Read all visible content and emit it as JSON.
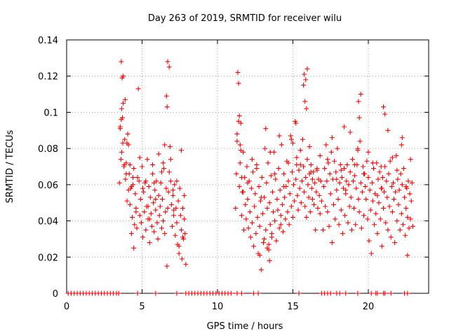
{
  "chart_data": {
    "type": "scatter",
    "title": "Day 263 of 2019, SRMTID for receiver wilu",
    "xlabel": "GPS time / hours",
    "ylabel": "SRMTID / TECUs",
    "xlim": [
      0,
      24
    ],
    "ylim": [
      0,
      0.14
    ],
    "grid": true,
    "legend": "none",
    "marker": "+",
    "color": "#ff0000",
    "x_ticks": [
      0,
      5,
      10,
      15,
      20
    ],
    "x_tick_labels": [
      "0",
      "5",
      "10",
      "15",
      "20"
    ],
    "y_ticks": [
      0,
      0.02,
      0.04,
      0.06,
      0.08,
      0.1,
      0.12,
      0.14
    ],
    "y_tick_labels": [
      "0",
      "0.02",
      "0.04",
      "0.06",
      "0.08",
      "0.1",
      "0.12",
      "0.14"
    ],
    "series": [
      {
        "name": "SRMTID",
        "note": "points at y=0 mark times with no data; main clusters 3.4-8.0 h and 11.1-23.0 h",
        "x": [
          0.1,
          0.3,
          0.5,
          0.7,
          0.9,
          1.1,
          1.3,
          1.5,
          1.7,
          1.9,
          2.1,
          2.3,
          2.5,
          2.7,
          2.9,
          3.1,
          3.3,
          3.45,
          4.7,
          5.9,
          7.3,
          7.9,
          8.1,
          8.3,
          8.5,
          8.7,
          8.9,
          9.1,
          9.3,
          9.5,
          9.7,
          9.9,
          10.1,
          10.3,
          10.5,
          10.7,
          10.9,
          11.3,
          11.6,
          12.4,
          12.7,
          15.4,
          16.9,
          17.1,
          17.3,
          17.5,
          17.9,
          18.1,
          18.5,
          19.3,
          20.2,
          20.5,
          20.6,
          21.0,
          21.1,
          21.5,
          22.4,
          22.6,
          3.5,
          3.55,
          3.6,
          3.62,
          3.65,
          3.7,
          3.72,
          3.75,
          3.8,
          3.85,
          3.88,
          3.9,
          3.95,
          4.0,
          4.05,
          4.1,
          4.15,
          4.2,
          4.25,
          4.3,
          4.35,
          4.4,
          4.45,
          4.5,
          4.55,
          4.6,
          4.65,
          4.7,
          4.75,
          4.8,
          4.85,
          4.9,
          4.95,
          5.0,
          5.05,
          5.1,
          5.15,
          5.2,
          5.25,
          5.3,
          5.35,
          5.4,
          5.45,
          5.5,
          5.55,
          5.6,
          5.65,
          5.7,
          5.75,
          5.8,
          5.85,
          5.9,
          5.95,
          6.0,
          6.05,
          6.1,
          6.15,
          6.2,
          6.25,
          6.3,
          6.35,
          6.4,
          6.45,
          6.5,
          6.55,
          6.6,
          6.65,
          6.7,
          6.75,
          6.8,
          6.85,
          6.9,
          6.95,
          7.0,
          7.05,
          7.1,
          7.15,
          7.2,
          7.25,
          7.3,
          7.35,
          7.4,
          7.45,
          7.5,
          7.55,
          7.6,
          7.65,
          7.7,
          7.75,
          7.8,
          7.85,
          7.9,
          3.55,
          3.65,
          3.75,
          3.82,
          3.95,
          4.1,
          4.3,
          4.45,
          4.6,
          4.85,
          5.05,
          5.25,
          5.5,
          5.7,
          5.9,
          6.1,
          6.3,
          6.5,
          6.62,
          6.66,
          6.7,
          6.9,
          7.05,
          7.3,
          7.45,
          7.6,
          7.8,
          3.62,
          3.68,
          4.0,
          4.2,
          4.4,
          5.4,
          5.8,
          6.4,
          6.8,
          7.1,
          7.7,
          11.2,
          11.25,
          11.3,
          11.35,
          11.4,
          11.45,
          11.5,
          11.55,
          11.6,
          11.65,
          11.7,
          11.75,
          11.8,
          11.85,
          11.9,
          11.95,
          12.0,
          12.05,
          12.1,
          12.15,
          12.2,
          12.25,
          12.3,
          12.35,
          12.4,
          12.45,
          12.5,
          12.55,
          12.6,
          12.65,
          12.7,
          12.75,
          12.8,
          12.85,
          12.9,
          12.95,
          13.0,
          13.05,
          13.1,
          13.15,
          13.2,
          13.25,
          13.3,
          13.35,
          13.4,
          13.45,
          13.5,
          13.55,
          13.6,
          13.65,
          13.7,
          13.75,
          13.8,
          13.85,
          13.9,
          13.95,
          14.0,
          14.05,
          14.1,
          14.15,
          14.2,
          14.25,
          14.3,
          14.35,
          14.4,
          14.45,
          14.5,
          14.55,
          14.6,
          14.65,
          14.7,
          14.75,
          14.8,
          14.85,
          14.9,
          14.95,
          15.0,
          15.05,
          15.1,
          15.15,
          15.2,
          15.25,
          15.3,
          15.35,
          15.4,
          15.45,
          15.5,
          15.55,
          15.6,
          15.65,
          15.7,
          15.75,
          15.8,
          15.85,
          15.9,
          15.95,
          16.0,
          16.05,
          16.1,
          16.15,
          16.2,
          16.25,
          16.3,
          16.35,
          16.4,
          16.45,
          16.5,
          16.55,
          16.6,
          16.65,
          16.7,
          16.75,
          16.8,
          16.85,
          16.9,
          11.3,
          11.4,
          11.5,
          11.6,
          11.7,
          12.0,
          12.3,
          12.6,
          12.9,
          13.2,
          13.5,
          13.8,
          14.1,
          14.4,
          14.7,
          15.0,
          15.2,
          15.5,
          15.7,
          15.8,
          15.9,
          16.1,
          16.3,
          16.6,
          16.8,
          11.45,
          11.55,
          13.1,
          13.3,
          13.6,
          14.2,
          14.9,
          15.25,
          15.75,
          15.85,
          15.95,
          16.2,
          12.8,
          13.4,
          13.45,
          17.0,
          17.05,
          17.1,
          17.15,
          17.2,
          17.25,
          17.3,
          17.35,
          17.4,
          17.45,
          17.5,
          17.55,
          17.6,
          17.65,
          17.7,
          17.75,
          17.8,
          17.85,
          17.9,
          17.95,
          18.0,
          18.05,
          18.1,
          18.15,
          18.2,
          18.25,
          18.3,
          18.35,
          18.4,
          18.45,
          18.5,
          18.55,
          18.6,
          18.65,
          18.7,
          18.75,
          18.8,
          18.85,
          18.9,
          18.95,
          19.0,
          19.05,
          19.1,
          19.15,
          19.2,
          19.25,
          19.3,
          19.35,
          19.4,
          19.45,
          19.5,
          19.55,
          19.6,
          19.65,
          19.7,
          19.75,
          19.8,
          19.85,
          19.9,
          19.95,
          20.0,
          20.05,
          20.1,
          20.15,
          20.2,
          20.25,
          20.3,
          20.35,
          20.4,
          20.45,
          20.5,
          20.55,
          20.6,
          20.65,
          20.7,
          20.75,
          20.8,
          20.85,
          20.9,
          20.95,
          21.0,
          21.05,
          21.1,
          21.15,
          21.2,
          21.25,
          21.3,
          21.35,
          21.4,
          21.45,
          21.5,
          21.55,
          21.6,
          21.65,
          21.7,
          21.75,
          21.8,
          21.85,
          21.9,
          21.95,
          22.0,
          22.05,
          22.1,
          22.15,
          22.2,
          22.25,
          22.3,
          22.35,
          22.4,
          22.45,
          22.5,
          22.55,
          22.6,
          22.65,
          22.7,
          22.75,
          22.8,
          22.85,
          22.9,
          22.95,
          17.3,
          17.6,
          17.9,
          18.2,
          18.5,
          18.8,
          19.1,
          19.3,
          19.4,
          19.5,
          19.7,
          20.0,
          20.3,
          20.6,
          20.85,
          21.0,
          21.3,
          21.6,
          21.9,
          22.2,
          22.5,
          22.8,
          18.4,
          19.35,
          20.9,
          21.1,
          22.25,
          22.6
        ],
        "y": [
          0,
          0,
          0,
          0,
          0,
          0,
          0,
          0,
          0,
          0,
          0,
          0,
          0,
          0,
          0,
          0,
          0,
          0,
          0,
          0,
          0,
          0,
          0,
          0,
          0,
          0,
          0,
          0,
          0,
          0,
          0,
          0,
          0,
          0,
          0,
          0,
          0,
          0,
          0,
          0,
          0,
          0,
          0,
          0,
          0,
          0,
          0,
          0,
          0,
          0,
          0,
          0,
          0,
          0,
          0,
          0,
          0,
          0,
          0.061,
          0.091,
          0.074,
          0.128,
          0.102,
          0.097,
          0.083,
          0.12,
          0.07,
          0.085,
          0.107,
          0.063,
          0.072,
          0.051,
          0.088,
          0.057,
          0.066,
          0.049,
          0.058,
          0.033,
          0.042,
          0.06,
          0.025,
          0.038,
          0.055,
          0.047,
          0.036,
          0.064,
          0.113,
          0.062,
          0.043,
          0.052,
          0.039,
          0.07,
          0.031,
          0.056,
          0.045,
          0.061,
          0.035,
          0.048,
          0.074,
          0.041,
          0.059,
          0.028,
          0.053,
          0.044,
          0.037,
          0.066,
          0.05,
          0.034,
          0.057,
          0.046,
          0.062,
          0.039,
          0.03,
          0.054,
          0.043,
          0.048,
          0.061,
          0.036,
          0.052,
          0.04,
          0.069,
          0.033,
          0.045,
          0.058,
          0.015,
          0.047,
          0.056,
          0.125,
          0.081,
          0.062,
          0.049,
          0.037,
          0.054,
          0.043,
          0.06,
          0.032,
          0.047,
          0.039,
          0.027,
          0.051,
          0.022,
          0.058,
          0.043,
          0.035,
          0.019,
          0.047,
          0.03,
          0.041,
          0.033,
          0.016,
          0.092,
          0.078,
          0.105,
          0.071,
          0.066,
          0.082,
          0.059,
          0.069,
          0.045,
          0.075,
          0.058,
          0.062,
          0.041,
          0.071,
          0.052,
          0.077,
          0.067,
          0.082,
          0.109,
          0.103,
          0.128,
          0.074,
          0.057,
          0.062,
          0.026,
          0.079,
          0.054,
          0.096,
          0.119,
          0.083,
          0.071,
          0.064,
          0.048,
          0.061,
          0.072,
          0.067,
          0.046,
          0.031,
          0.047,
          0.066,
          0.084,
          0.122,
          0.116,
          0.059,
          0.072,
          0.094,
          0.043,
          0.056,
          0.078,
          0.035,
          0.064,
          0.049,
          0.041,
          0.07,
          0.052,
          0.036,
          0.062,
          0.045,
          0.031,
          0.058,
          0.039,
          0.067,
          0.026,
          0.048,
          0.055,
          0.033,
          0.071,
          0.042,
          0.022,
          0.059,
          0.037,
          0.051,
          0.013,
          0.064,
          0.044,
          0.028,
          0.053,
          0.08,
          0.035,
          0.061,
          0.047,
          0.072,
          0.024,
          0.05,
          0.038,
          0.065,
          0.031,
          0.056,
          0.045,
          0.078,
          0.04,
          0.063,
          0.029,
          0.052,
          0.046,
          0.069,
          0.036,
          0.057,
          0.043,
          0.082,
          0.049,
          0.034,
          0.066,
          0.053,
          0.041,
          0.059,
          0.073,
          0.045,
          0.062,
          0.038,
          0.055,
          0.087,
          0.048,
          0.067,
          0.042,
          0.06,
          0.051,
          0.095,
          0.063,
          0.071,
          0.054,
          0.046,
          0.068,
          0.058,
          0.079,
          0.05,
          0.062,
          0.085,
          0.07,
          0.056,
          0.048,
          0.064,
          0.042,
          0.074,
          0.06,
          0.053,
          0.066,
          0.045,
          0.071,
          0.058,
          0.052,
          0.067,
          0.049,
          0.061,
          0.035,
          0.056,
          0.069,
          0.047,
          0.063,
          0.054,
          0.044,
          0.062,
          0.051,
          0.088,
          0.095,
          0.082,
          0.064,
          0.056,
          0.061,
          0.074,
          0.069,
          0.053,
          0.091,
          0.078,
          0.066,
          0.087,
          0.059,
          0.072,
          0.083,
          0.094,
          0.071,
          0.115,
          0.106,
          0.102,
          0.081,
          0.063,
          0.068,
          0.076,
          0.098,
          0.079,
          0.03,
          0.025,
          0.033,
          0.038,
          0.085,
          0.075,
          0.121,
          0.118,
          0.124,
          0.067,
          0.021,
          0.027,
          0.018,
          0.035,
          0.059,
          0.069,
          0.048,
          0.082,
          0.062,
          0.045,
          0.072,
          0.037,
          0.066,
          0.055,
          0.078,
          0.028,
          0.063,
          0.049,
          0.073,
          0.041,
          0.067,
          0.057,
          0.08,
          0.052,
          0.038,
          0.061,
          0.071,
          0.046,
          0.064,
          0.033,
          0.058,
          0.069,
          0.043,
          0.055,
          0.062,
          0.071,
          0.039,
          0.06,
          0.048,
          0.067,
          0.053,
          0.035,
          0.074,
          0.062,
          0.047,
          0.065,
          0.038,
          0.058,
          0.071,
          0.08,
          0.052,
          0.045,
          0.084,
          0.061,
          0.036,
          0.056,
          0.07,
          0.043,
          0.066,
          0.059,
          0.052,
          0.073,
          0.041,
          0.064,
          0.029,
          0.057,
          0.046,
          0.022,
          0.061,
          0.051,
          0.069,
          0.038,
          0.055,
          0.044,
          0.072,
          0.033,
          0.063,
          0.05,
          0.067,
          0.041,
          0.058,
          0.026,
          0.064,
          0.047,
          0.056,
          0.07,
          0.039,
          0.062,
          0.053,
          0.035,
          0.066,
          0.048,
          0.073,
          0.031,
          0.059,
          0.045,
          0.061,
          0.052,
          0.028,
          0.056,
          0.076,
          0.04,
          0.063,
          0.049,
          0.057,
          0.035,
          0.066,
          0.044,
          0.06,
          0.038,
          0.069,
          0.053,
          0.032,
          0.047,
          0.058,
          0.042,
          0.062,
          0.036,
          0.055,
          0.041,
          0.051,
          0.061,
          0.037,
          0.074,
          0.086,
          0.063,
          0.068,
          0.057,
          0.089,
          0.071,
          0.079,
          0.097,
          0.11,
          0.066,
          0.078,
          0.072,
          0.054,
          0.07,
          0.103,
          0.09,
          0.075,
          0.068,
          0.082,
          0.059,
          0.074,
          0.092,
          0.106,
          0.058,
          0.099,
          0.086,
          0.021
        ]
      }
    ]
  }
}
